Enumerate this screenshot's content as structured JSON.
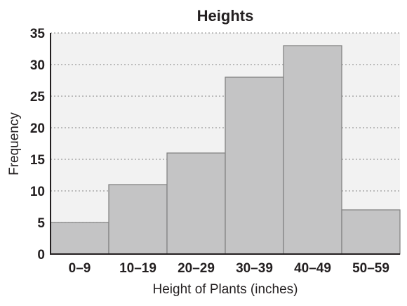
{
  "chart_data": {
    "type": "bar",
    "title": "Heights",
    "xlabel": "Height of Plants (inches)",
    "ylabel": "Frequency",
    "categories": [
      "0–9",
      "10–19",
      "20–29",
      "30–39",
      "40–49",
      "50–59"
    ],
    "values": [
      5,
      11,
      16,
      28,
      33,
      7
    ],
    "ylim": [
      0,
      35
    ],
    "yticks": [
      "0",
      "5",
      "10",
      "15",
      "20",
      "25",
      "30",
      "35"
    ],
    "grid": true,
    "grid_style": "dotted",
    "legend": "none",
    "colors": {
      "plot_background": "#f2f2f2",
      "bar_fill": "#c4c4c5",
      "bar_stroke": "#7f7f7f",
      "grid": "#9a9a9a",
      "axis": "#231f20"
    }
  }
}
